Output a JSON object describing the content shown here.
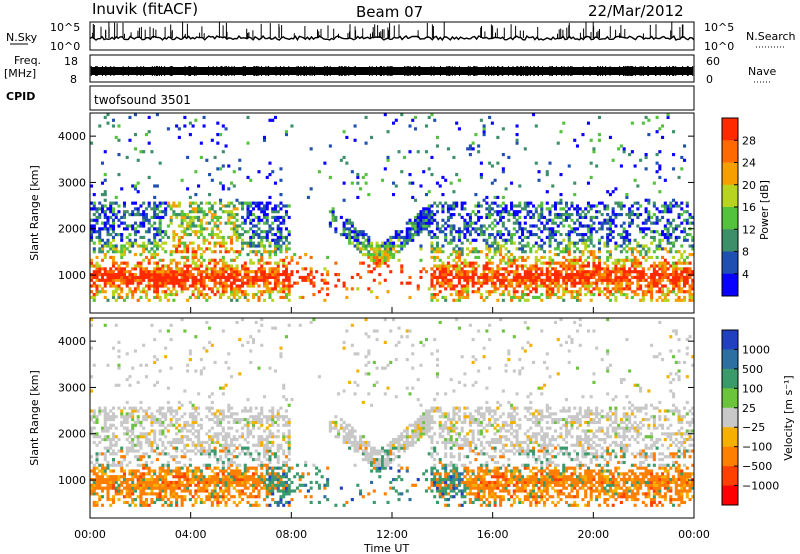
{
  "header": {
    "station": "Inuvik (fitACF)",
    "beam": "Beam 07",
    "date": "22/Mar/2012"
  },
  "top_panels": {
    "nsky_label": "N.Sky",
    "nsky_ticks": [
      "10^5",
      "10^0"
    ],
    "nsearch_label": "N.Search",
    "nsearch_ticks": [
      "10^5",
      "10^0"
    ],
    "freq_label": "Freq.",
    "freq_unit": "[MHz]",
    "freq_ticks": [
      "18",
      "8"
    ],
    "nave_label": "Nave",
    "nave_ticks": [
      "60",
      "0"
    ],
    "cpid_label": "CPID",
    "cpid_value": "twofsound 3501"
  },
  "chart_data": [
    {
      "type": "heatmap",
      "name": "power",
      "ylabel": "Slant Range [km]",
      "xlabel": "",
      "ylim": [
        180,
        4500
      ],
      "yticks": [
        "1000",
        "2000",
        "3000",
        "4000"
      ],
      "xlim": [
        0,
        24
      ],
      "colorbar_label": "Power [dB]",
      "colorbar_ticks": [
        "4",
        "8",
        "12",
        "16",
        "20",
        "24",
        "28"
      ],
      "colorbar_colors": [
        "#0a00ff",
        "#1f4fb0",
        "#3d8f6a",
        "#54c23c",
        "#b8d420",
        "#f5a000",
        "#ff6a00",
        "#ff2a00"
      ]
    },
    {
      "type": "heatmap",
      "name": "velocity",
      "ylabel": "Slant Range [km]",
      "xlabel": "Time UT",
      "ylim": [
        180,
        4500
      ],
      "yticks": [
        "1000",
        "2000",
        "3000",
        "4000"
      ],
      "xlim": [
        0,
        24
      ],
      "xticks": [
        "00:00",
        "04:00",
        "08:00",
        "12:00",
        "16:00",
        "20:00",
        "00:00"
      ],
      "colorbar_label": "Velocity [m s⁻¹]",
      "colorbar_ticks": [
        "1000",
        "500",
        "100",
        "25",
        "−25",
        "−100",
        "−500",
        "−1000"
      ],
      "colorbar_colors": [
        "#2040c0",
        "#2d6fa0",
        "#3a9a6a",
        "#6cc43c",
        "#c8c8c8",
        "#f5b000",
        "#ff7f00",
        "#ff4000",
        "#ff0000"
      ]
    }
  ]
}
